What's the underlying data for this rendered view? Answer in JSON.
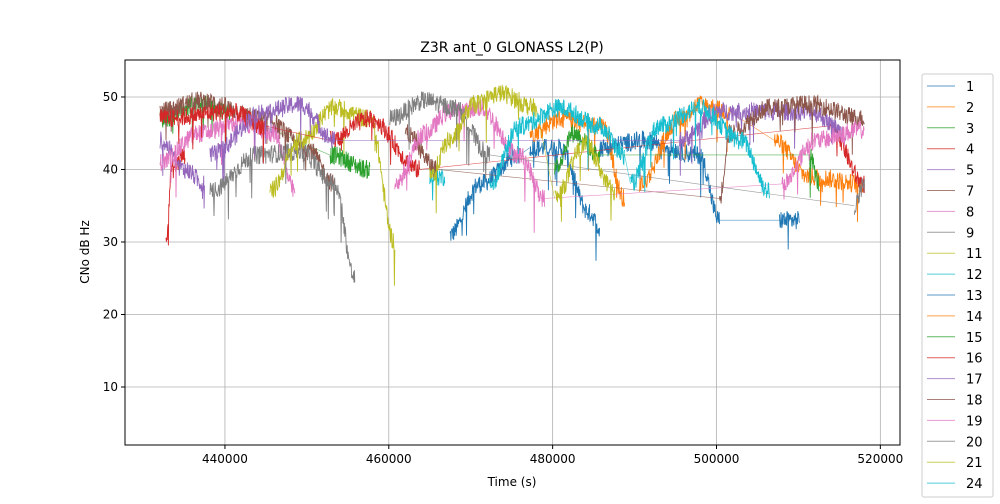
{
  "chart_data": {
    "type": "line",
    "title": "Z3R ant_0 GLONASS L2(P)",
    "xlabel": "Time (s)",
    "ylabel": "CNo dB Hz",
    "xlim": [
      427800,
      522400
    ],
    "ylim": [
      2,
      55.1
    ],
    "xticks": [
      440000,
      460000,
      480000,
      500000,
      520000
    ],
    "xtick_labels": [
      "440000",
      "460000",
      "480000",
      "500000",
      "520000"
    ],
    "yticks": [
      10,
      20,
      30,
      40,
      50
    ],
    "ytick_labels": [
      "10",
      "20",
      "30",
      "40",
      "50"
    ],
    "grid": true,
    "legend_position": "outside-right",
    "series": [
      {
        "name": "1",
        "color": "#1f77b4",
        "segments": [
          [
            [
              467440,
              31
            ],
            [
              471100,
              38
            ],
            [
              475980,
              42
            ]
          ],
          [
            [
              477200,
              43
            ],
            [
              480850,
              43
            ],
            [
              484510,
              34
            ],
            [
              485730,
              32
            ]
          ]
        ]
      },
      {
        "name": "2",
        "color": "#ff7f0e",
        "segments": [
          [
            [
              477200,
              45
            ],
            [
              481000,
              47
            ],
            [
              486000,
              46
            ],
            [
              488780,
              36
            ]
          ]
        ]
      },
      {
        "name": "3",
        "color": "#2ca02c",
        "segments": [
          [
            [
              432070,
              47
            ],
            [
              436950,
              49
            ],
            [
              440610,
              48
            ]
          ],
          [
            [
              452800,
              42
            ],
            [
              457680,
              40
            ]
          ]
        ]
      },
      {
        "name": "4",
        "color": "#d62728",
        "segments": [
          [
            [
              432800,
              30
            ],
            [
              433500,
              40
            ],
            [
              435120,
              42
            ]
          ]
        ]
      },
      {
        "name": "5",
        "color": "#9467bd",
        "segments": [
          [
            [
              432070,
              44
            ],
            [
              435120,
              40
            ],
            [
              437500,
              38
            ]
          ]
        ]
      },
      {
        "name": "7",
        "color": "#8c564b",
        "segments": [
          [
            [
              432070,
              48
            ],
            [
              436950,
              49.5
            ],
            [
              444880,
              47
            ],
            [
              450000,
              43
            ],
            [
              453400,
              38
            ]
          ]
        ]
      },
      {
        "name": "8",
        "color": "#e377c2",
        "segments": [
          [
            [
              432070,
              41
            ],
            [
              436950,
              45
            ],
            [
              441830,
              46.5
            ],
            [
              446000,
              45
            ],
            [
              448540,
              37
            ]
          ]
        ]
      },
      {
        "name": "9",
        "color": "#7f7f7f",
        "segments": [
          [
            [
              438170,
              37
            ],
            [
              444000,
              42
            ],
            [
              449150,
              42.5
            ],
            [
              453400,
              38
            ],
            [
              455850,
              25
            ]
          ]
        ]
      },
      {
        "name": "11",
        "color": "#bcbd22",
        "segments": [
          [
            [
              445490,
              37
            ],
            [
              449150,
              44
            ],
            [
              453400,
              48.5
            ],
            [
              457680,
              47
            ],
            [
              460730,
              30
            ]
          ]
        ]
      },
      {
        "name": "12",
        "color": "#17becf",
        "segments": [
          [
            [
              465000,
              39
            ],
            [
              466830,
              39
            ]
          ]
        ]
      },
      {
        "name": "13",
        "color": "#1f77b4",
        "segments": [
          [
            [
              485730,
              43
            ],
            [
              491000,
              44
            ],
            [
              497930,
              42
            ],
            [
              500370,
              33
            ]
          ],
          [
            [
              507680,
              33
            ],
            [
              510120,
              33
            ]
          ]
        ]
      },
      {
        "name": "14",
        "color": "#ff7f0e",
        "segments": [
          [
            [
              490610,
              38
            ],
            [
              495490,
              47
            ],
            [
              497930,
              49
            ],
            [
              501590,
              48
            ]
          ],
          [
            [
              507070,
              44
            ],
            [
              511340,
              39
            ],
            [
              518050,
              38
            ]
          ]
        ]
      },
      {
        "name": "15",
        "color": "#2ca02c",
        "segments": [
          [
            [
              480240,
              40
            ],
            [
              482500,
              45
            ],
            [
              485730,
              42
            ]
          ],
          [
            [
              511340,
              42
            ],
            [
              512560,
              38
            ]
          ]
        ]
      },
      {
        "name": "16",
        "color": "#d62728",
        "segments": [
          [
            [
              432070,
              47
            ],
            [
              440610,
              48
            ],
            [
              444880,
              46
            ]
          ],
          [
            [
              452800,
              44
            ],
            [
              457680,
              47
            ],
            [
              463780,
              40
            ]
          ],
          [
            [
              513780,
              46
            ],
            [
              518050,
              38
            ]
          ]
        ]
      },
      {
        "name": "17",
        "color": "#9467bd",
        "segments": [
          [
            [
              438170,
              42
            ],
            [
              444880,
              48
            ],
            [
              449150,
              49
            ],
            [
              453400,
              44
            ]
          ],
          [
            [
              495490,
              44
            ],
            [
              500370,
              48
            ],
            [
              511340,
              48
            ],
            [
              516000,
              45
            ]
          ]
        ]
      },
      {
        "name": "18",
        "color": "#8c564b",
        "segments": [
          [
            [
              462000,
              45
            ],
            [
              466000,
              40
            ]
          ],
          [
            [
              500370,
              36
            ],
            [
              501590,
              45
            ],
            [
              506460,
              48.5
            ],
            [
              511340,
              49
            ],
            [
              518050,
              47
            ]
          ]
        ]
      },
      {
        "name": "19",
        "color": "#e377c2",
        "segments": [
          [
            [
              460730,
              38
            ],
            [
              464390,
              45
            ],
            [
              467440,
              48
            ],
            [
              471100,
              48.5
            ],
            [
              475980,
              42
            ],
            [
              479020,
              36
            ]
          ],
          [
            [
              508000,
              38
            ],
            [
              512000,
              44
            ],
            [
              518050,
              45.5
            ]
          ]
        ]
      },
      {
        "name": "20",
        "color": "#7f7f7f",
        "segments": [
          [
            [
              460120,
              47
            ],
            [
              464390,
              49.5
            ],
            [
              468000,
              48.5
            ],
            [
              472320,
              42
            ]
          ],
          [
            [
              516830,
              35
            ],
            [
              518050,
              38
            ]
          ]
        ]
      },
      {
        "name": "21",
        "color": "#bcbd22",
        "segments": [
          [
            [
              465000,
              39
            ],
            [
              467440,
              44
            ],
            [
              470490,
              49
            ],
            [
              473500,
              50.5
            ],
            [
              478000,
              48.5
            ]
          ],
          [
            [
              480240,
              36
            ],
            [
              483900,
              43.5
            ],
            [
              487560,
              37
            ]
          ]
        ]
      },
      {
        "name": "24",
        "color": "#17becf",
        "segments": [
          [
            [
              472320,
              38
            ],
            [
              476000,
              46
            ],
            [
              480850,
              48.5
            ],
            [
              485730,
              46
            ],
            [
              488780,
              42
            ]
          ],
          [
            [
              489500,
              38
            ],
            [
              493000,
              46
            ],
            [
              497930,
              48.5
            ],
            [
              503000,
              44
            ],
            [
              506460,
              37
            ]
          ]
        ]
      }
    ]
  }
}
